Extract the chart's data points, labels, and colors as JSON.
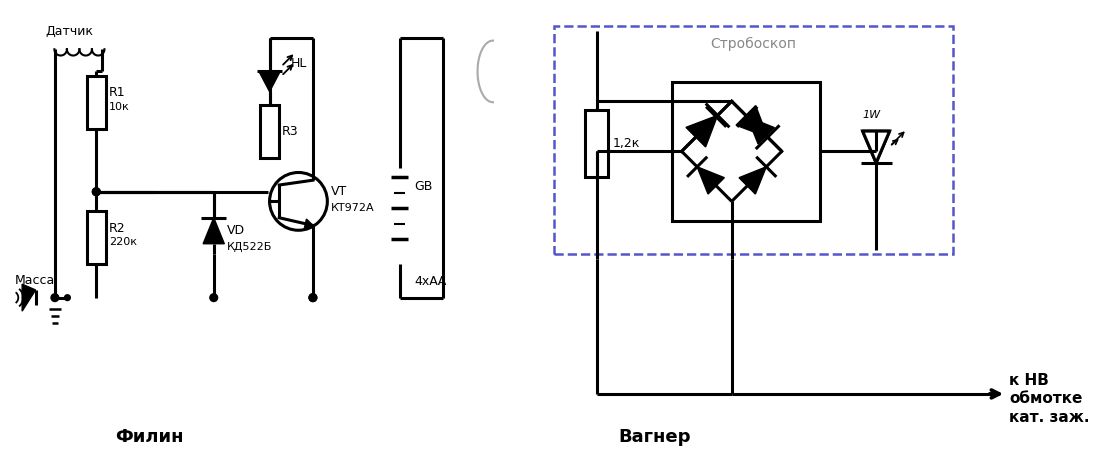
{
  "bg_color": "#ffffff",
  "title_left": "Филин",
  "title_right": "Вагнер",
  "label_sensor": "Датчик",
  "label_R1": "R1",
  "label_R1val": "10к",
  "label_R2": "R2",
  "label_R2val": "220к",
  "label_massa": "Масса",
  "label_R3": "R3",
  "label_HL": "HL",
  "label_VT": "VT",
  "label_VTval": "КТ972А",
  "label_VD": "VD",
  "label_VDval": "КД522Б",
  "label_GB": "GB",
  "label_GBval": "4хАА",
  "label_strob": "Стробоскоп",
  "label_1W": "1W",
  "label_12k": "1,2к",
  "label_kNV": "к НВ",
  "label_obmotke": "обмотке",
  "label_katzazh": "кат. заж.",
  "line_color": "#000000",
  "dashed_color": "#5555cc",
  "text_color": "#000000",
  "gray_color": "#888888"
}
